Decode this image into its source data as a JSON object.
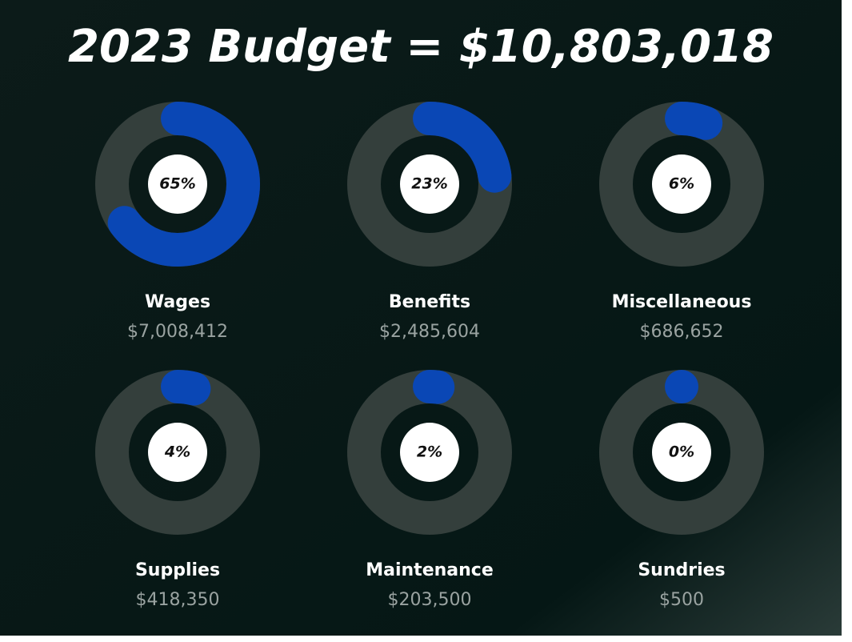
{
  "chart_data": {
    "type": "gauge",
    "title": "2023 Budget = $10,803,018",
    "categories": [
      "Wages",
      "Benefits",
      "Miscellaneous",
      "Supplies",
      "Maintenance",
      "Sundries"
    ],
    "values": [
      65,
      23,
      6,
      4,
      2,
      0
    ],
    "value_labels": [
      "65%",
      "23%",
      "6%",
      "4%",
      "2%",
      "0%"
    ],
    "amounts": [
      "$7,008,412",
      "$2,485,604",
      "$686,652",
      "$418,350",
      "$203,500",
      "$500"
    ],
    "color": "#0a47b5",
    "track_color": "#343f3c"
  }
}
